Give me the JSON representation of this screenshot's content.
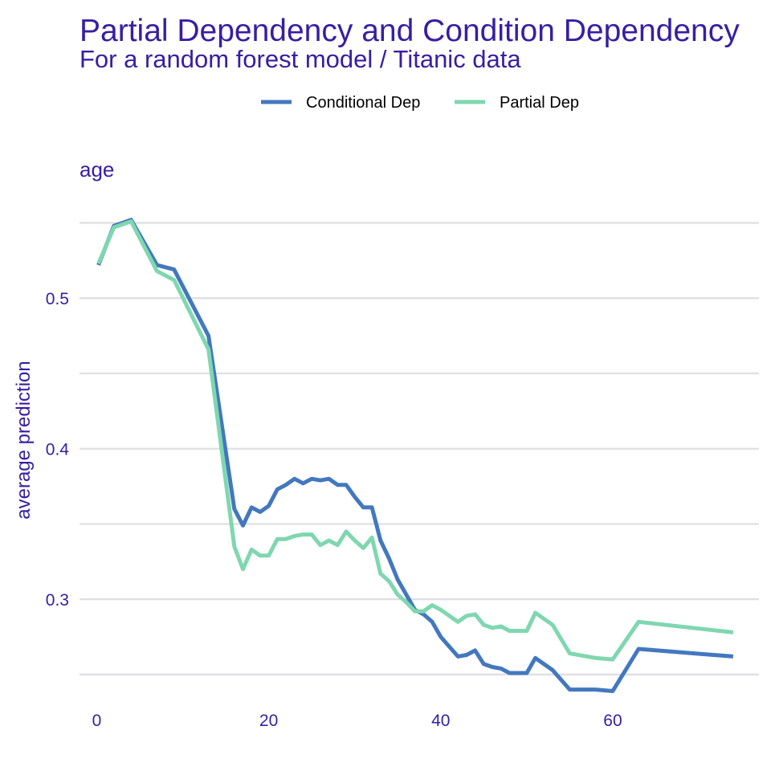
{
  "chart_data": {
    "type": "line",
    "title": "Partial Dependency and Condition Dependency",
    "subtitle": "For a random forest model / Titanic data",
    "facet_label": "age",
    "xlabel": "",
    "ylabel": "average prediction",
    "xlim": [
      -2,
      77
    ],
    "ylim": [
      0.235,
      0.57
    ],
    "x_ticks": [
      0,
      20,
      40,
      60
    ],
    "x_tick_labels": [
      "0",
      "20",
      "40",
      "60"
    ],
    "y_gridlines": [
      0.25,
      0.3,
      0.35,
      0.4,
      0.45,
      0.5,
      0.55
    ],
    "y_ticks": [
      0.3,
      0.4,
      0.5
    ],
    "y_tick_labels": [
      "0.3",
      "0.4",
      "0.5"
    ],
    "grid": true,
    "legend_position": "top",
    "series": [
      {
        "name": "Conditional Dep",
        "color": "#4378bf",
        "x": [
          0.2,
          2,
          4,
          7,
          9,
          13,
          16,
          17,
          18,
          19,
          20,
          21,
          22,
          23,
          24,
          25,
          26,
          27,
          28,
          29,
          30,
          31,
          32,
          33,
          34,
          35,
          36,
          37,
          38,
          39,
          40,
          42,
          43,
          44,
          45,
          46,
          47,
          48,
          49,
          50,
          51,
          53,
          55,
          58,
          60,
          63,
          74
        ],
        "y": [
          0.522,
          0.548,
          0.552,
          0.522,
          0.519,
          0.475,
          0.36,
          0.349,
          0.361,
          0.358,
          0.362,
          0.373,
          0.376,
          0.38,
          0.377,
          0.38,
          0.379,
          0.38,
          0.376,
          0.376,
          0.368,
          0.361,
          0.361,
          0.339,
          0.327,
          0.313,
          0.303,
          0.293,
          0.29,
          0.285,
          0.275,
          0.262,
          0.263,
          0.266,
          0.257,
          0.255,
          0.254,
          0.251,
          0.251,
          0.251,
          0.261,
          0.253,
          0.24,
          0.24,
          0.239,
          0.267,
          0.262
        ]
      },
      {
        "name": "Partial Dep",
        "color": "#7fd7b0",
        "x": [
          0.2,
          2,
          4,
          7,
          9,
          13,
          16,
          17,
          18,
          19,
          20,
          21,
          22,
          23,
          24,
          25,
          26,
          27,
          28,
          29,
          30,
          31,
          32,
          33,
          34,
          35,
          36,
          37,
          38,
          39,
          40,
          42,
          43,
          44,
          45,
          46,
          47,
          48,
          49,
          50,
          51,
          53,
          55,
          58,
          60,
          63,
          74
        ],
        "y": [
          0.523,
          0.547,
          0.551,
          0.518,
          0.512,
          0.466,
          0.335,
          0.32,
          0.333,
          0.329,
          0.329,
          0.34,
          0.34,
          0.342,
          0.343,
          0.343,
          0.336,
          0.339,
          0.336,
          0.345,
          0.339,
          0.334,
          0.341,
          0.317,
          0.312,
          0.303,
          0.298,
          0.292,
          0.292,
          0.296,
          0.293,
          0.285,
          0.289,
          0.29,
          0.283,
          0.281,
          0.282,
          0.279,
          0.279,
          0.279,
          0.291,
          0.283,
          0.264,
          0.261,
          0.26,
          0.285,
          0.278
        ]
      }
    ]
  }
}
